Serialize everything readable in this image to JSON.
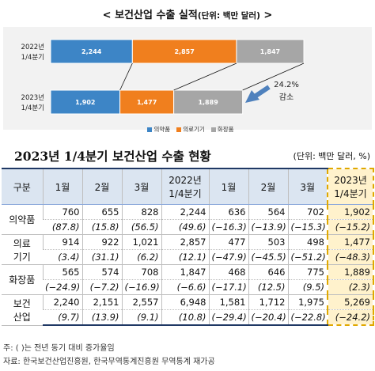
{
  "chart_data": {
    "type": "bar",
    "orientation": "horizontal",
    "stacked": true,
    "title": "< 보건산업 수출 실적",
    "title_unit": "(단위: 백만 달러)",
    "title_suffix": " >",
    "categories": [
      "2022년\n1/4분기",
      "2023년\n1/4분기"
    ],
    "category_lines": [
      [
        "2022년",
        "1/4분기"
      ],
      [
        "2023년",
        "1/4분기"
      ]
    ],
    "series": [
      {
        "name": "의약품",
        "color": "#3d85c6",
        "values": [
          2244,
          1902
        ]
      },
      {
        "name": "의료기기",
        "color": "#f07f1e",
        "values": [
          2857,
          1477
        ]
      },
      {
        "name": "화장품",
        "color": "#a6a6a6",
        "values": [
          1847,
          1889
        ]
      }
    ],
    "data_labels": [
      [
        "2,244",
        "2,857",
        "1,847"
      ],
      [
        "1,902",
        "1,477",
        "1,889"
      ]
    ],
    "annotation": {
      "lines": [
        "24.2%",
        "감소"
      ],
      "arrow_color": "#4f81bd"
    },
    "legend_position": "bottom",
    "grid": false
  },
  "table": {
    "title": "2023년 1/4분기 보건산업 수출 현황",
    "unit": "(단위: 백만 달러, %)",
    "header_group": "구분",
    "columns": [
      {
        "lines": [
          "1월"
        ]
      },
      {
        "lines": [
          "2월"
        ]
      },
      {
        "lines": [
          "3월"
        ]
      },
      {
        "lines": [
          "2022년",
          "1/4분기"
        ]
      },
      {
        "lines": [
          "1월"
        ]
      },
      {
        "lines": [
          "2월"
        ]
      },
      {
        "lines": [
          "3월"
        ]
      },
      {
        "lines": [
          "2023년",
          "1/4분기"
        ]
      }
    ],
    "rows": [
      {
        "label": [
          "의약품"
        ],
        "values": [
          "760",
          "655",
          "828",
          "2,244",
          "636",
          "564",
          "702",
          "1,902"
        ],
        "growth": [
          "(87.8)",
          "(15.8)",
          "(56.5)",
          "(49.6)",
          "(−16.3)",
          "(−13.9)",
          "(−15.3)",
          "(−15.2)"
        ]
      },
      {
        "label": [
          "의료",
          "기기"
        ],
        "values": [
          "914",
          "922",
          "1,021",
          "2,857",
          "477",
          "503",
          "498",
          "1,477"
        ],
        "growth": [
          "(3.4)",
          "(31.1)",
          "(6.2)",
          "(12.1)",
          "(−47.9)",
          "(−45.5)",
          "(−51.2)",
          "(−48.3)"
        ]
      },
      {
        "label": [
          "화장품"
        ],
        "values": [
          "565",
          "574",
          "708",
          "1,847",
          "468",
          "646",
          "775",
          "1,889"
        ],
        "growth": [
          "(−24.9)",
          "(−7.2)",
          "(−16.9)",
          "(−6.6)",
          "(−17.1)",
          "(12.5)",
          "(9.5)",
          "(2.3)"
        ]
      },
      {
        "label": [
          "보건",
          "산업"
        ],
        "values": [
          "2,240",
          "2,151",
          "2,557",
          "6,948",
          "1,581",
          "1,712",
          "1,975",
          "5,269"
        ],
        "growth": [
          "(9.7)",
          "(13.9)",
          "(9.1)",
          "(10.8)",
          "(−29.4)",
          "(−20.4)",
          "(−22.8)",
          "(−24.2)"
        ]
      }
    ]
  },
  "note": "주: ( )는 전년 동기 대비 증가율임",
  "source": "자료: 한국보건산업진흥원, 한국무역통계진흥원 무역통계 재가공",
  "colors": {
    "highlight_fill": "#fff2cc",
    "highlight_border": "#e0a800",
    "header_fill": "#dbe5f1",
    "rule": "#1f3864"
  }
}
